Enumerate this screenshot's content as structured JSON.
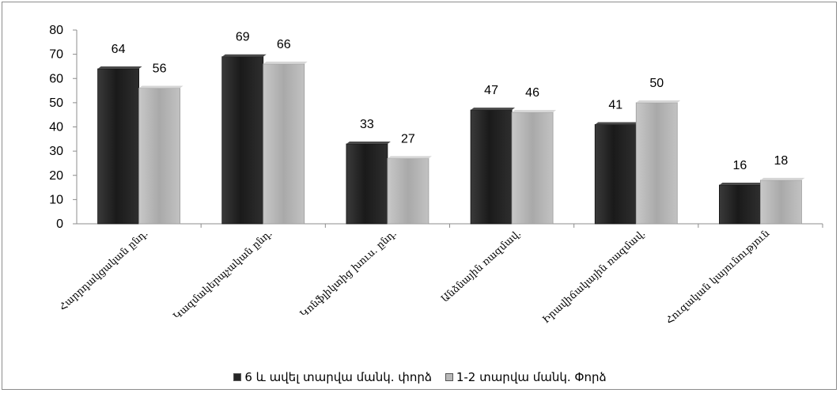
{
  "chart_data": {
    "type": "bar",
    "categories": [
      "Հարրդակցական ընդ.",
      "Կազմակերպչական ընդ.",
      "Կոնֆլիկտից խուս. ընդ.",
      "Անձնային ռազմավ.",
      "Իրավիճակային ռազմավ.",
      "Հուզական կայունություն"
    ],
    "series": [
      {
        "name": "6 և ավել տարվա մանկ. փորձ",
        "values": [
          64,
          69,
          33,
          47,
          41,
          16
        ],
        "color": "#262626"
      },
      {
        "name": "1-2 տարվա մանկ. Փորձ",
        "values": [
          56,
          66,
          27,
          46,
          50,
          18
        ],
        "color": "#b8b8b8"
      }
    ],
    "ylim": [
      0,
      80
    ],
    "yticks": [
      "0",
      "10",
      "20",
      "30",
      "40",
      "50",
      "60",
      "70",
      "80"
    ],
    "grid": false,
    "legend_position": "bottom"
  }
}
